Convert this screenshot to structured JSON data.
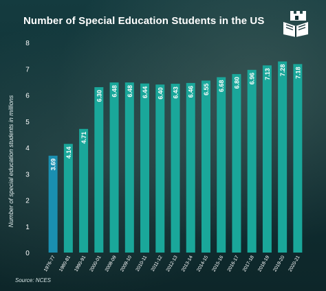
{
  "header": {
    "title": "Number of Special Education Students in the US"
  },
  "footer": {
    "source": "Source: NCES"
  },
  "logo": {
    "icon": "book-castle-logo-icon"
  },
  "colors": {
    "bar": "#1aa79a",
    "bar_highlight": "#1a8fb0",
    "axis": "#ffffff"
  },
  "chart_data": {
    "type": "bar",
    "title": "Number of Special Education Students in the US",
    "xlabel": "",
    "ylabel": "Number of special education students in millions",
    "ylim": [
      0,
      8
    ],
    "yticks": [
      0,
      1,
      2,
      3,
      4,
      5,
      6,
      7,
      8
    ],
    "grid": false,
    "categories": [
      "1976-77",
      "1980-81",
      "1990-91",
      "2000-01",
      "2008-09",
      "2009-10",
      "2010-11",
      "2011-12",
      "2012-13",
      "2013-14",
      "2014-15",
      "2015-16",
      "2016-17",
      "2017-18",
      "2018-19",
      "2019-20",
      "2020-21"
    ],
    "values": [
      3.69,
      4.14,
      4.71,
      6.3,
      6.48,
      6.48,
      6.44,
      6.4,
      6.43,
      6.46,
      6.55,
      6.68,
      6.8,
      6.96,
      7.13,
      7.28,
      7.18
    ],
    "data_labels": [
      "3.69",
      "4.14",
      "4.71",
      "6.30",
      "6.48",
      "6.48",
      "6.44",
      "6.40",
      "6.43",
      "6.46",
      "6.55",
      "6.68",
      "6.80",
      "6.96",
      "7.13",
      "7.28",
      "7.18"
    ],
    "highlight_index": 0
  }
}
